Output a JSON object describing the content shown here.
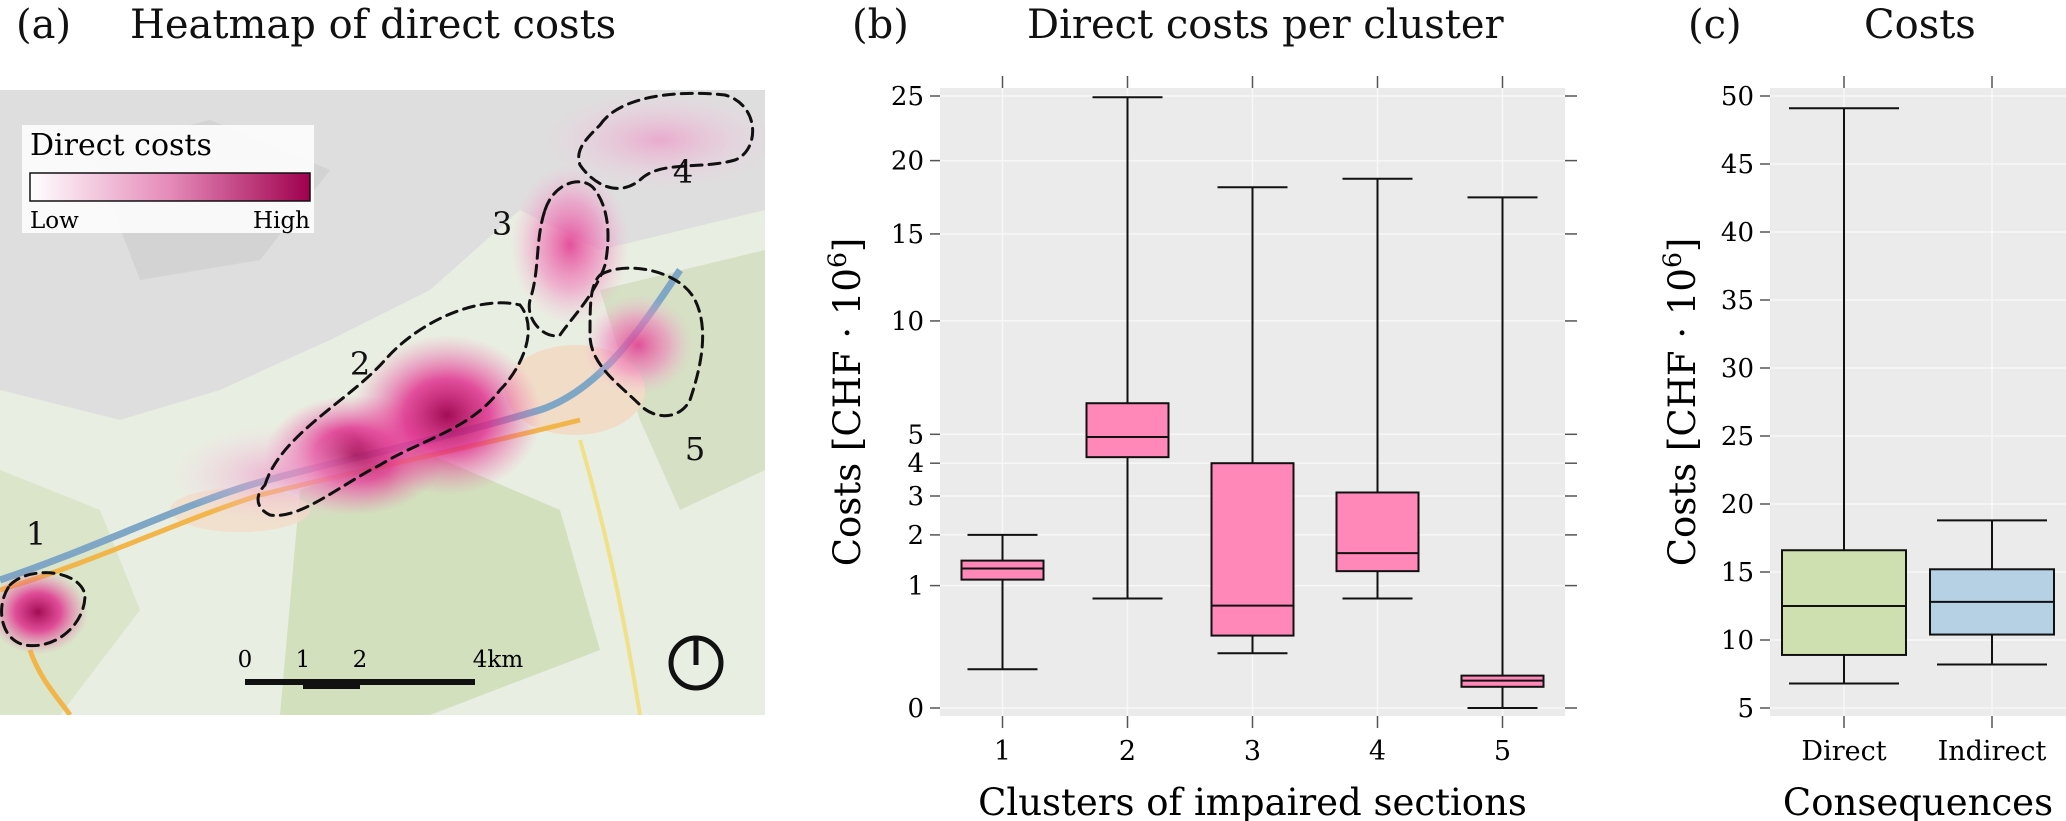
{
  "panel_a": {
    "label": "(a)",
    "title": "Heatmap of direct costs",
    "legend": {
      "title": "Direct costs",
      "low": "Low",
      "high": "High",
      "color_low": "#ffffff",
      "color_high": "#a0004e"
    },
    "clusters": [
      "1",
      "2",
      "3",
      "4",
      "5"
    ],
    "scale": {
      "ticks": [
        "0",
        "1",
        "2",
        "4km"
      ]
    },
    "north_icon": "compass-north-icon"
  },
  "panel_b": {
    "label": "(b)",
    "title": "Direct costs per cluster"
  },
  "panel_c": {
    "label": "(c)",
    "title": "Costs"
  },
  "chart_data": [
    {
      "type": "box",
      "title": "Direct costs per cluster",
      "xlabel": "Clusters of impaired sections",
      "ylabel": "Costs [CHF · 10",
      "ylabel_sup": "6",
      "ylabel_close": "]",
      "ylim": [
        0,
        25
      ],
      "scale": "sqrt",
      "yticks": [
        0,
        1,
        2,
        3,
        4,
        5,
        10,
        15,
        20,
        25
      ],
      "categories": [
        "1",
        "2",
        "3",
        "4",
        "5"
      ],
      "fill": "#ff88b8",
      "boxes": [
        {
          "whislo": 0.1,
          "q1": 1.1,
          "med": 1.3,
          "q3": 1.45,
          "whishi": 2.0
        },
        {
          "whislo": 0.8,
          "q1": 4.2,
          "med": 4.9,
          "q3": 6.2,
          "whishi": 24.9
        },
        {
          "whislo": 0.2,
          "q1": 0.35,
          "med": 0.7,
          "q3": 4.0,
          "whishi": 18.1
        },
        {
          "whislo": 0.8,
          "q1": 1.25,
          "med": 1.6,
          "q3": 3.1,
          "whishi": 18.7
        },
        {
          "whislo": 0.0,
          "q1": 0.03,
          "med": 0.05,
          "q3": 0.07,
          "whishi": 17.4
        }
      ]
    },
    {
      "type": "box",
      "title": "Costs",
      "xlabel": "Consequences",
      "ylabel": "Costs [CHF · 10",
      "ylabel_sup": "6",
      "ylabel_close": "]",
      "ylim": [
        5,
        50
      ],
      "scale": "linear",
      "yticks": [
        5,
        10,
        15,
        20,
        25,
        30,
        35,
        40,
        45,
        50
      ],
      "categories": [
        "Direct",
        "Indirect"
      ],
      "fills": [
        "#cfe0b0",
        "#b5d1e3"
      ],
      "boxes": [
        {
          "whislo": 6.8,
          "q1": 8.9,
          "med": 12.5,
          "q3": 16.6,
          "whishi": 49.1
        },
        {
          "whislo": 8.2,
          "q1": 10.4,
          "med": 12.8,
          "q3": 15.2,
          "whishi": 18.8
        }
      ]
    }
  ]
}
